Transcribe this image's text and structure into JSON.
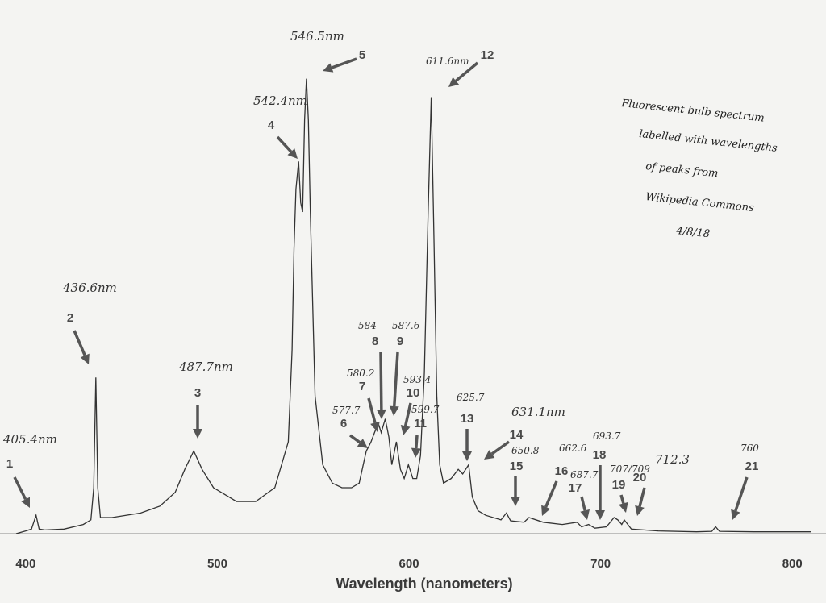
{
  "chart_data": {
    "type": "line",
    "title": "",
    "xlabel": "Wavelength (nanometers)",
    "ylabel": "",
    "xlim": [
      395,
      810
    ],
    "ylim": [
      0,
      1
    ],
    "x_ticks": [
      400,
      500,
      600,
      700,
      800
    ],
    "x_tick_labels": [
      "400",
      "500",
      "600",
      "700",
      "800"
    ],
    "grid": false,
    "note_lines": [
      "Fluorescent bulb spectrum",
      "labelled with wavelengths",
      "of peaks from",
      "Wikipedia Commons",
      "4/8/18"
    ],
    "peaks": [
      {
        "num": "1",
        "x": 405.4,
        "y": 0.04,
        "label": "405.4nm"
      },
      {
        "num": "2",
        "x": 436.6,
        "y": 0.34,
        "label": "436.6nm"
      },
      {
        "num": "3",
        "x": 487.7,
        "y": 0.18,
        "label": "487.7nm"
      },
      {
        "num": "4",
        "x": 542.4,
        "y": 0.81,
        "label": "542.4nm"
      },
      {
        "num": "5",
        "x": 546.5,
        "y": 0.99,
        "label": "546.5nm"
      },
      {
        "num": "6",
        "x": 577.7,
        "y": 0.18,
        "label": "577.7"
      },
      {
        "num": "7",
        "x": 580.2,
        "y": 0.2,
        "label": "580.2"
      },
      {
        "num": "8",
        "x": 584,
        "y": 0.24,
        "label": "584"
      },
      {
        "num": "9",
        "x": 587.6,
        "y": 0.25,
        "label": "587.6"
      },
      {
        "num": "10",
        "x": 593.4,
        "y": 0.2,
        "label": "593.4"
      },
      {
        "num": "11",
        "x": 599.7,
        "y": 0.15,
        "label": "599.7"
      },
      {
        "num": "12",
        "x": 611.6,
        "y": 0.95,
        "label": "611.6nm"
      },
      {
        "num": "13",
        "x": 625.7,
        "y": 0.14,
        "label": "625.7"
      },
      {
        "num": "14",
        "x": 631.1,
        "y": 0.15,
        "label": "631.1nm"
      },
      {
        "num": "15",
        "x": 650.8,
        "y": 0.045,
        "label": "650.8"
      },
      {
        "num": "16",
        "x": 662.6,
        "y": 0.035,
        "label": "662.6"
      },
      {
        "num": "17",
        "x": 687.7,
        "y": 0.025,
        "label": "687.7"
      },
      {
        "num": "18",
        "x": 693.7,
        "y": 0.02,
        "label": "693.7"
      },
      {
        "num": "19",
        "x": 707.5,
        "y": 0.035,
        "label": "707/709"
      },
      {
        "num": "20",
        "x": 712.3,
        "y": 0.03,
        "label": "712.3"
      },
      {
        "num": "21",
        "x": 760,
        "y": 0.015,
        "label": "760"
      }
    ],
    "series": [
      {
        "x": [
          395,
          400,
          403,
          405.4,
          407,
          410,
          420,
          430,
          434,
          435.5,
          436.6,
          437.6,
          439,
          445,
          460,
          470,
          478,
          483,
          487.7,
          492,
          498,
          510,
          520,
          530,
          537,
          539,
          540,
          541,
          542.4,
          543.5,
          544.5,
          545.5,
          546.5,
          547.5,
          548.5,
          551,
          555,
          560,
          565,
          570,
          574,
          577.7,
          579,
          580.2,
          582,
          584,
          585.5,
          587.6,
          589.5,
          591,
          593.4,
          595.5,
          597.5,
          599.7,
          602,
          604,
          606,
          608,
          610,
          611.6,
          613,
          614.5,
          616,
          618,
          622,
          625.7,
          628,
          631.1,
          633,
          636,
          640,
          648,
          650.8,
          653,
          660,
          662.6,
          670,
          680,
          687.7,
          690,
          693.7,
          697,
          703,
          707,
          709,
          711,
          712.3,
          716,
          730,
          750,
          758,
          760,
          762,
          780,
          800,
          810
        ],
        "y": [
          0.0,
          0.006,
          0.01,
          0.04,
          0.01,
          0.008,
          0.01,
          0.02,
          0.03,
          0.1,
          0.34,
          0.1,
          0.035,
          0.035,
          0.045,
          0.06,
          0.09,
          0.14,
          0.18,
          0.14,
          0.1,
          0.07,
          0.07,
          0.1,
          0.2,
          0.4,
          0.62,
          0.75,
          0.81,
          0.72,
          0.7,
          0.9,
          0.99,
          0.9,
          0.7,
          0.3,
          0.15,
          0.11,
          0.1,
          0.1,
          0.11,
          0.18,
          0.19,
          0.2,
          0.22,
          0.24,
          0.22,
          0.25,
          0.21,
          0.15,
          0.2,
          0.14,
          0.12,
          0.15,
          0.12,
          0.12,
          0.17,
          0.35,
          0.7,
          0.95,
          0.65,
          0.3,
          0.15,
          0.11,
          0.12,
          0.14,
          0.13,
          0.15,
          0.08,
          0.05,
          0.04,
          0.03,
          0.045,
          0.028,
          0.025,
          0.035,
          0.025,
          0.02,
          0.025,
          0.015,
          0.02,
          0.012,
          0.015,
          0.035,
          0.03,
          0.02,
          0.03,
          0.01,
          0.006,
          0.004,
          0.005,
          0.015,
          0.005,
          0.004,
          0.004,
          0.004
        ]
      }
    ]
  }
}
